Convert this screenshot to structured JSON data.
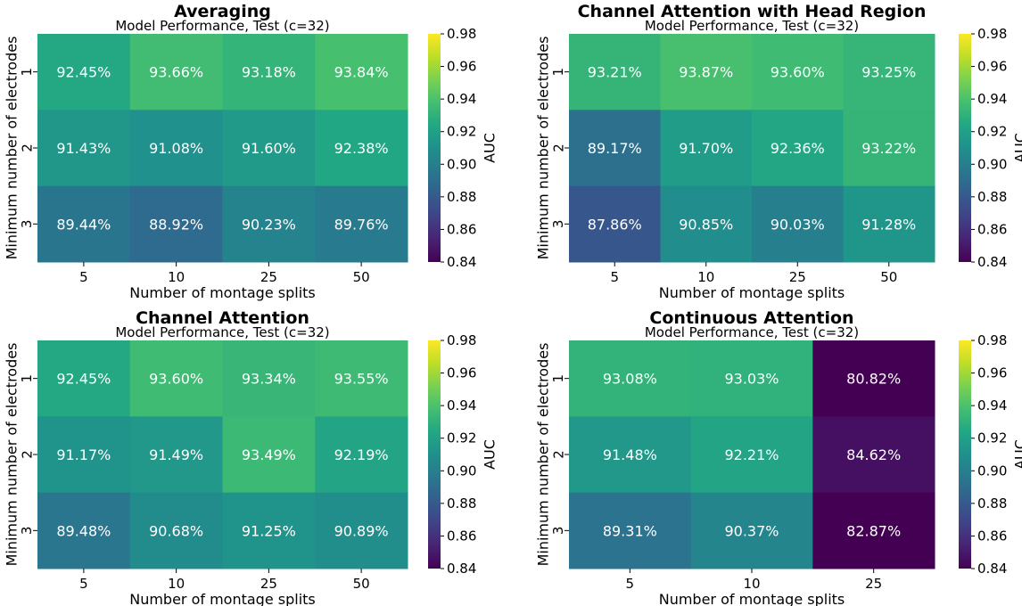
{
  "chart_data": [
    {
      "type": "heatmap",
      "title": "Averaging",
      "subtitle": "Model Performance, Test (c=32)",
      "xlabel": "Number of montage splits",
      "ylabel": "Minimum number of electrodes",
      "x_categories": [
        "5",
        "10",
        "25",
        "50"
      ],
      "y_categories": [
        "1",
        "2",
        "3"
      ],
      "values": [
        [
          0.9245,
          0.9366,
          0.9318,
          0.9384
        ],
        [
          0.9143,
          0.9108,
          0.916,
          0.9238
        ],
        [
          0.8944,
          0.8892,
          0.9023,
          0.8976
        ]
      ],
      "labels": [
        [
          "92.45%",
          "93.66%",
          "93.18%",
          "93.84%"
        ],
        [
          "91.43%",
          "91.08%",
          "91.60%",
          "92.38%"
        ],
        [
          "89.44%",
          "88.92%",
          "90.23%",
          "89.76%"
        ]
      ],
      "colorbar": {
        "label": "AUC",
        "vmin": 0.84,
        "vmax": 0.98,
        "ticks": [
          "0.84",
          "0.86",
          "0.88",
          "0.90",
          "0.92",
          "0.94",
          "0.96",
          "0.98"
        ]
      }
    },
    {
      "type": "heatmap",
      "title": "Channel Attention with Head Region",
      "subtitle": "Model Performance, Test (c=32)",
      "xlabel": "Number of montage splits",
      "ylabel": "Minimum number of electrodes",
      "x_categories": [
        "5",
        "10",
        "25",
        "50"
      ],
      "y_categories": [
        "1",
        "2",
        "3"
      ],
      "values": [
        [
          0.9321,
          0.9387,
          0.936,
          0.9325
        ],
        [
          0.8917,
          0.917,
          0.9236,
          0.9322
        ],
        [
          0.8786,
          0.9085,
          0.9003,
          0.9128
        ]
      ],
      "labels": [
        [
          "93.21%",
          "93.87%",
          "93.60%",
          "93.25%"
        ],
        [
          "89.17%",
          "91.70%",
          "92.36%",
          "93.22%"
        ],
        [
          "87.86%",
          "90.85%",
          "90.03%",
          "91.28%"
        ]
      ],
      "colorbar": {
        "label": "AUC",
        "vmin": 0.84,
        "vmax": 0.98,
        "ticks": [
          "0.84",
          "0.86",
          "0.88",
          "0.90",
          "0.92",
          "0.94",
          "0.96",
          "0.98"
        ]
      }
    },
    {
      "type": "heatmap",
      "title": "Channel Attention",
      "subtitle": "Model Performance, Test (c=32)",
      "xlabel": "Number of montage splits",
      "ylabel": "Minimum number of electrodes",
      "x_categories": [
        "5",
        "10",
        "25",
        "50"
      ],
      "y_categories": [
        "1",
        "2",
        "3"
      ],
      "values": [
        [
          0.9245,
          0.936,
          0.9334,
          0.9355
        ],
        [
          0.9117,
          0.9149,
          0.9349,
          0.9219
        ],
        [
          0.8948,
          0.9068,
          0.9125,
          0.9089
        ]
      ],
      "labels": [
        [
          "92.45%",
          "93.60%",
          "93.34%",
          "93.55%"
        ],
        [
          "91.17%",
          "91.49%",
          "93.49%",
          "92.19%"
        ],
        [
          "89.48%",
          "90.68%",
          "91.25%",
          "90.89%"
        ]
      ],
      "colorbar": {
        "label": "AUC",
        "vmin": 0.84,
        "vmax": 0.98,
        "ticks": [
          "0.84",
          "0.86",
          "0.88",
          "0.90",
          "0.92",
          "0.94",
          "0.96",
          "0.98"
        ]
      }
    },
    {
      "type": "heatmap",
      "title": "Continuous Attention",
      "subtitle": "Model Performance, Test (c=32)",
      "xlabel": "Number of montage splits",
      "ylabel": "Minimum number of electrodes",
      "x_categories": [
        "5",
        "10",
        "25"
      ],
      "y_categories": [
        "1",
        "2",
        "3"
      ],
      "values": [
        [
          0.9308,
          0.9303,
          0.8082
        ],
        [
          0.9148,
          0.9221,
          0.8462
        ],
        [
          0.8931,
          0.9037,
          0.8287
        ]
      ],
      "labels": [
        [
          "93.08%",
          "93.03%",
          "80.82%"
        ],
        [
          "91.48%",
          "92.21%",
          "84.62%"
        ],
        [
          "89.31%",
          "90.37%",
          "82.87%"
        ]
      ],
      "colorbar": {
        "label": "AUC",
        "vmin": 0.84,
        "vmax": 0.98,
        "ticks": [
          "0.84",
          "0.86",
          "0.88",
          "0.90",
          "0.92",
          "0.94",
          "0.96",
          "0.98"
        ]
      }
    }
  ],
  "colormap": "viridis"
}
